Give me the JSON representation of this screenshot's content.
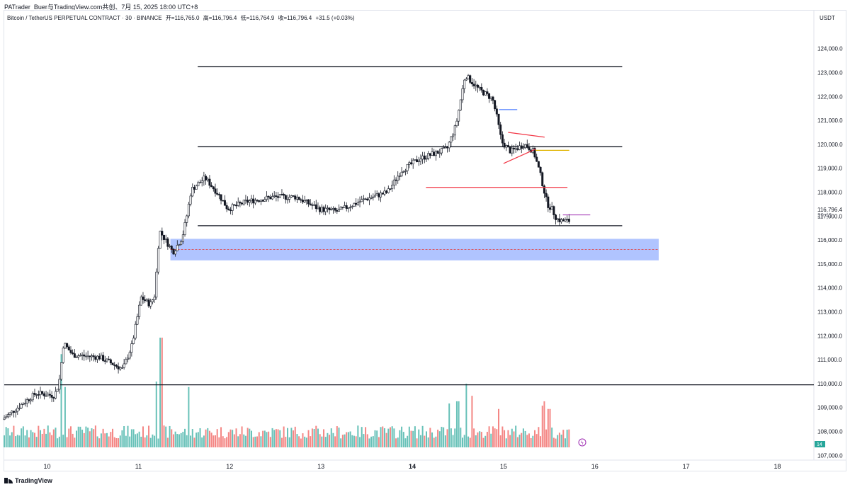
{
  "header": {
    "attribution": "PATrader_Buer与TradingView.com共创、7月 15, 2025 18:00 UTC+8",
    "symbol": "Bitcoin / TetherUS PERPETUAL CONTRACT · 30 · BINANCE",
    "open": "开=116,765.0",
    "high": "高=116,796.4",
    "low": "低=116,764.9",
    "close": "收=116,796.4",
    "change": "+31.5 (+0.03%)"
  },
  "currency": "USDT",
  "footer": {
    "brand": "TradingView"
  },
  "price_tag": {
    "value": "116,796.4",
    "countdown": "29:43"
  },
  "volume_badge": "14",
  "colors": {
    "up": "#26a69a",
    "down": "#ef5350",
    "level": "#131722",
    "zone": "#7b9cff",
    "red_line": "#f23645",
    "blue_line": "#2962ff",
    "yellow_line": "#e0b400",
    "purple_line": "#9c27b0"
  },
  "chart_data": {
    "type": "candlestick",
    "timeframe": "30",
    "x_ticks": [
      "10",
      "11",
      "12",
      "13",
      "14",
      "15",
      "16",
      "17",
      "18"
    ],
    "y_ticks": [
      "124,000.0",
      "123,000.0",
      "122,000.0",
      "121,000.0",
      "120,000.0",
      "119,000.0",
      "118,000.0",
      "117,000.0",
      "116,000.0",
      "115,000.0",
      "114,000.0",
      "113,000.0",
      "112,000.0",
      "111,000.0",
      "110,000.0",
      "109,000.0",
      "108,000.0",
      "107,000.0"
    ],
    "ylim": [
      106950,
      124850
    ],
    "xlim_days": [
      9.53,
      18.4
    ],
    "price_path": [
      [
        9.53,
        108500
      ],
      [
        9.9,
        109600
      ],
      [
        10.1,
        109500
      ],
      [
        10.15,
        110000
      ],
      [
        10.2,
        111700
      ],
      [
        10.3,
        111200
      ],
      [
        10.6,
        111100
      ],
      [
        10.85,
        110600
      ],
      [
        10.95,
        111600
      ],
      [
        11.05,
        113600
      ],
      [
        11.15,
        113300
      ],
      [
        11.2,
        113700
      ],
      [
        11.25,
        116400
      ],
      [
        11.4,
        115500
      ],
      [
        11.5,
        116100
      ],
      [
        11.55,
        117000
      ],
      [
        11.6,
        118100
      ],
      [
        11.75,
        118600
      ],
      [
        11.9,
        117900
      ],
      [
        12.0,
        117300
      ],
      [
        12.2,
        117600
      ],
      [
        12.5,
        117800
      ],
      [
        12.75,
        117800
      ],
      [
        13.0,
        117300
      ],
      [
        13.2,
        117200
      ],
      [
        13.5,
        117700
      ],
      [
        13.75,
        118000
      ],
      [
        13.9,
        118900
      ],
      [
        14.1,
        119400
      ],
      [
        14.4,
        119800
      ],
      [
        14.5,
        120800
      ],
      [
        14.6,
        122900
      ],
      [
        14.65,
        122700
      ],
      [
        14.75,
        122300
      ],
      [
        14.9,
        121900
      ],
      [
        14.95,
        121100
      ],
      [
        15.0,
        120100
      ],
      [
        15.1,
        119700
      ],
      [
        15.25,
        120000
      ],
      [
        15.35,
        119700
      ],
      [
        15.42,
        118800
      ],
      [
        15.5,
        117500
      ],
      [
        15.55,
        117300
      ],
      [
        15.6,
        116900
      ],
      [
        15.65,
        116800
      ],
      [
        15.73,
        116800
      ]
    ],
    "volume_spikes": [
      [
        10.15,
        0.85
      ],
      [
        10.2,
        0.55
      ],
      [
        11.2,
        0.6
      ],
      [
        11.25,
        1.0
      ],
      [
        11.55,
        0.55
      ],
      [
        14.4,
        0.4
      ],
      [
        14.5,
        0.42
      ],
      [
        14.6,
        0.58
      ],
      [
        14.65,
        0.47
      ],
      [
        14.95,
        0.35
      ],
      [
        15.42,
        0.38
      ],
      [
        15.45,
        0.42
      ],
      [
        15.5,
        0.35
      ]
    ],
    "horizontal_levels": [
      {
        "price": 123250,
        "from": 11.65,
        "to": 16.3
      },
      {
        "price": 119900,
        "from": 11.65,
        "to": 16.3
      },
      {
        "price": 116600,
        "from": 11.65,
        "to": 16.3
      },
      {
        "price": 109950,
        "from": 9.53,
        "to": 18.4
      }
    ],
    "zone": {
      "top": 116050,
      "bottom": 115150,
      "mid": 115600,
      "from": 11.35,
      "to": 16.7
    },
    "red_lines": [
      {
        "x1": 14.15,
        "y1": 118200,
        "x2": 15.7,
        "y2": 118200
      },
      {
        "x1": 15.05,
        "y1": 120500,
        "x2": 15.45,
        "y2": 120300
      },
      {
        "x1": 15.0,
        "y1": 119200,
        "x2": 15.35,
        "y2": 119800
      }
    ],
    "blue_line": {
      "x1": 14.95,
      "y1": 121450,
      "x2": 15.15,
      "y2": 121450
    },
    "yellow_line": {
      "x1": 15.35,
      "y1": 119750,
      "x2": 15.72,
      "y2": 119750
    },
    "purple_line": {
      "x1": 15.65,
      "y1": 117050,
      "x2": 15.95,
      "y2": 117050
    },
    "last_price": 116796.4
  }
}
